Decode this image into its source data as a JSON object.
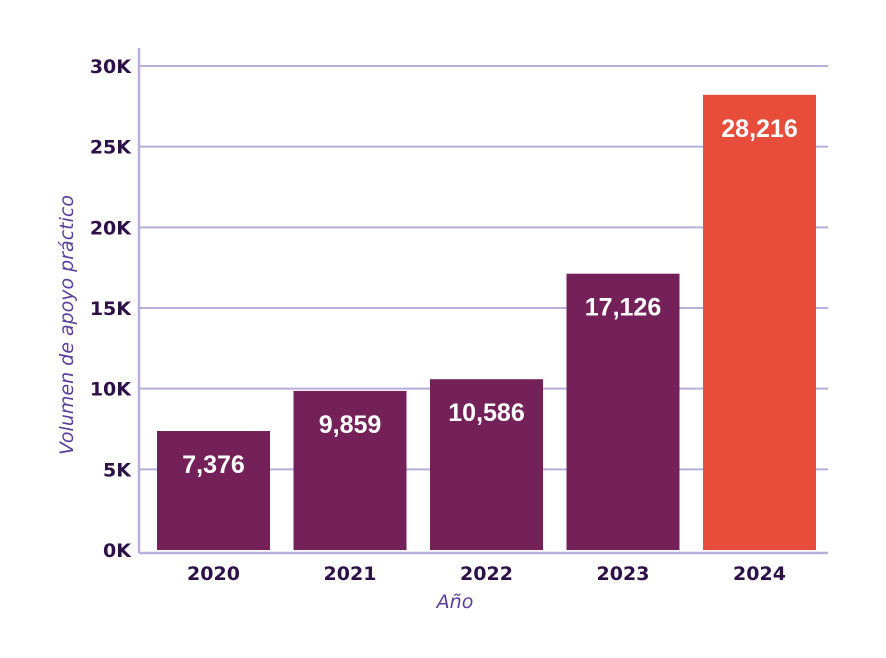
{
  "chart_data": {
    "type": "bar",
    "title": "",
    "xlabel": "Año",
    "ylabel": "Volumen de apoyo práctico",
    "categories": [
      "2020",
      "2021",
      "2022",
      "2023",
      "2024"
    ],
    "values": [
      7376,
      9859,
      10586,
      17126,
      28216
    ],
    "value_labels": [
      "7,376",
      "9,859",
      "10,586",
      "17,126",
      "28,216"
    ],
    "ylim": [
      0,
      30000
    ],
    "yticks": [
      0,
      5000,
      10000,
      15000,
      20000,
      25000,
      30000
    ],
    "ytick_labels": [
      "0K",
      "5K",
      "10K",
      "15K",
      "20K",
      "25K",
      "30K"
    ],
    "grid": true,
    "colors": {
      "bar": "#74215A",
      "highlight": "#E84C3A",
      "grid": "#B9AEDB",
      "text": "#2E1048",
      "axis_title": "#5B3E9E"
    },
    "highlight_index": 4
  }
}
